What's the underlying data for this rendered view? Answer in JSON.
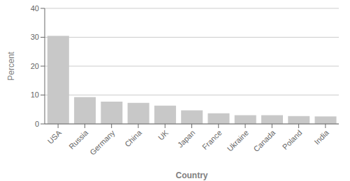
{
  "chart_data": {
    "type": "bar",
    "categories": [
      "USA",
      "Russia",
      "Germany",
      "China",
      "UK",
      "Japan",
      "France",
      "Ukraine",
      "Canada",
      "Poland",
      "India"
    ],
    "values": [
      30.5,
      9.3,
      7.7,
      7.3,
      6.3,
      4.7,
      3.7,
      3.0,
      3.0,
      2.7,
      2.6
    ],
    "color": "#c8c8c8",
    "xlabel": "Country",
    "ylabel": "Percent",
    "ylim": [
      0,
      40
    ],
    "yticks": [
      0,
      10,
      20,
      30,
      40
    ],
    "grid": true
  }
}
